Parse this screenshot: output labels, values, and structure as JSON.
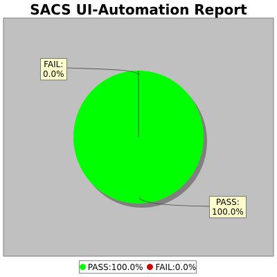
{
  "chart_data": {
    "type": "pie",
    "title": "SACS UI-Automation Report",
    "slices": [
      {
        "label": "PASS",
        "value": 100.0,
        "display": "100.0%",
        "color": "#00ff00"
      },
      {
        "label": "FAIL",
        "value": 0.0,
        "display": "0.0%",
        "color": "#cc0000"
      }
    ],
    "labels": {
      "pass_callout_name": "PASS:",
      "pass_callout_value": "100.0%",
      "fail_callout_name": "FAIL:",
      "fail_callout_value": "0.0%"
    },
    "legend": {
      "placement": "bottom",
      "items": [
        {
          "text": "PASS:100.0%",
          "color": "#00ff00"
        },
        {
          "text": "FAIL:0.0%",
          "color": "#cc0000"
        }
      ]
    },
    "colors": {
      "plot_background": "#c0c0c0",
      "plot_border": "#808080",
      "shadow": "#808080"
    }
  }
}
